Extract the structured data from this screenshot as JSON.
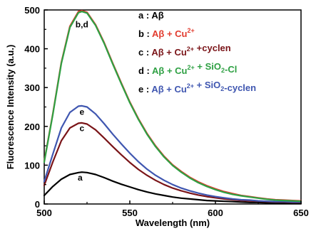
{
  "chart_data": {
    "type": "line",
    "xlabel": "Wavelength (nm)",
    "ylabel": "Fluorescence Intensity (a.u.)",
    "xlim": [
      500,
      650
    ],
    "ylim": [
      0,
      500
    ],
    "xticks": [
      500,
      550,
      600,
      650
    ],
    "yticks": [
      0,
      100,
      200,
      300,
      400,
      500
    ],
    "grid": false,
    "legend_position": "top-right",
    "x": [
      500,
      505,
      510,
      515,
      520,
      522,
      525,
      530,
      535,
      540,
      545,
      550,
      555,
      560,
      565,
      570,
      575,
      580,
      585,
      590,
      595,
      600,
      605,
      610,
      615,
      620,
      625,
      630,
      635,
      640,
      645,
      650
    ],
    "series": [
      {
        "id": "a",
        "letter": "a",
        "label_parts": [
          "Aβ"
        ],
        "color": "#000000",
        "values": [
          22,
          45,
          64,
          76,
          81,
          82,
          81,
          76,
          68,
          59,
          51,
          44,
          37,
          31,
          26,
          22,
          18,
          15,
          13,
          11,
          9,
          8,
          7,
          6,
          5,
          4,
          4,
          3,
          3,
          2,
          2,
          2
        ]
      },
      {
        "id": "b",
        "letter": "b",
        "label_parts": [
          "Aβ + Cu",
          "2+",
          ""
        ],
        "color": "#e23b2e",
        "values": [
          110,
          232,
          365,
          458,
          496,
          498,
          494,
          462,
          416,
          363,
          312,
          263,
          220,
          182,
          150,
          123,
          101,
          84,
          69,
          57,
          47,
          39,
          32,
          27,
          22,
          19,
          16,
          13,
          11,
          10,
          9,
          8
        ]
      },
      {
        "id": "c",
        "letter": "c",
        "label_parts": [
          "Aβ + Cu",
          "2+",
          " +cyclen"
        ],
        "color": "#7a1418",
        "values": [
          48,
          108,
          163,
          196,
          208,
          209,
          206,
          191,
          170,
          148,
          127,
          107,
          89,
          74,
          61,
          50,
          41,
          34,
          28,
          23,
          19,
          16,
          13,
          11,
          9,
          8,
          7,
          6,
          5,
          5,
          4,
          4
        ]
      },
      {
        "id": "d",
        "letter": "d",
        "label_parts": [
          "Aβ + Cu",
          "2+",
          " + SiO",
          "2",
          "-Cl"
        ],
        "color": "#2ea043",
        "values": [
          108,
          230,
          362,
          455,
          493,
          496,
          492,
          460,
          414,
          361,
          310,
          261,
          218,
          180,
          148,
          121,
          99,
          82,
          67,
          55,
          45,
          37,
          30,
          25,
          21,
          18,
          15,
          12,
          10,
          9,
          8,
          7
        ]
      },
      {
        "id": "e",
        "letter": "e",
        "label_parts": [
          "Aβ + Cu",
          "2+",
          " + SiO",
          "2",
          "-cyclen"
        ],
        "color": "#3f56b0",
        "values": [
          58,
          128,
          196,
          236,
          252,
          253,
          250,
          232,
          207,
          180,
          155,
          131,
          109,
          90,
          74,
          61,
          50,
          41,
          34,
          28,
          23,
          19,
          16,
          13,
          11,
          10,
          8,
          7,
          6,
          6,
          5,
          5
        ]
      }
    ],
    "curve_labels": [
      {
        "text": "b,d",
        "x": 522,
        "y": 455
      },
      {
        "text": "e",
        "x": 522,
        "y": 230
      },
      {
        "text": "c",
        "x": 522,
        "y": 188
      },
      {
        "text": "a",
        "x": 521,
        "y": 60
      }
    ]
  }
}
